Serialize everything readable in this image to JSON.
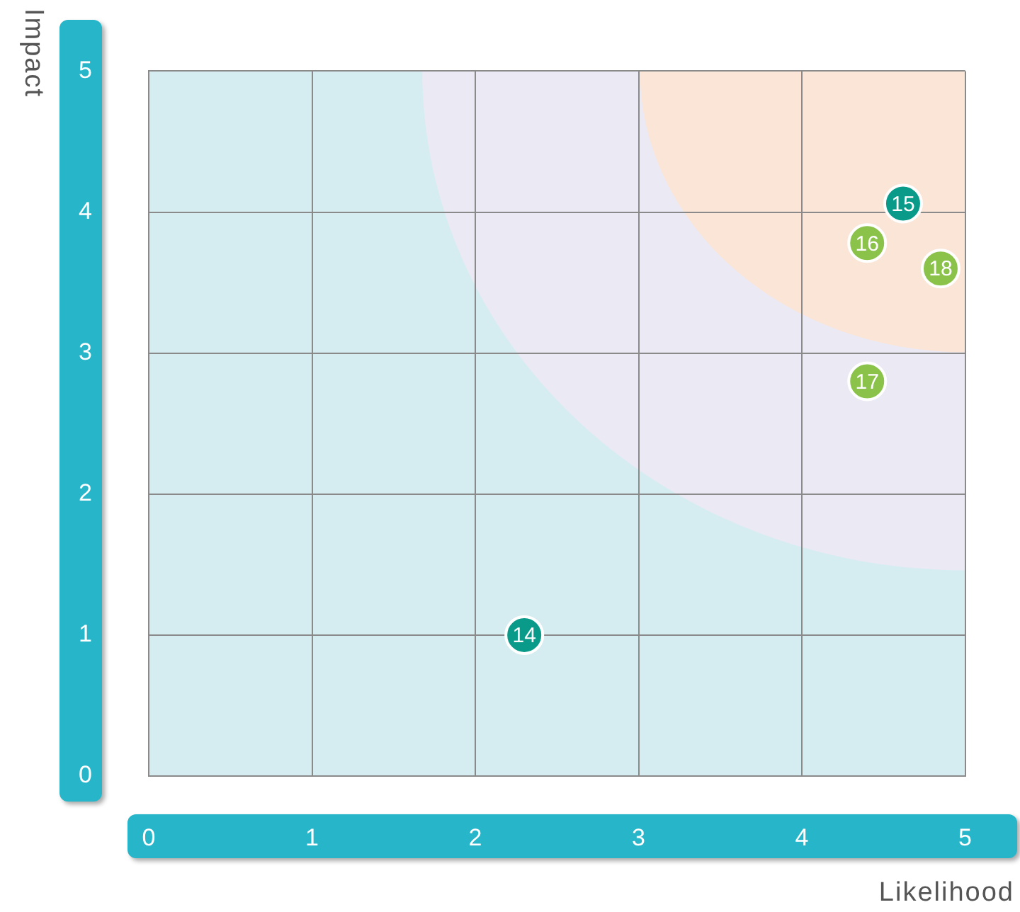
{
  "chart_data": {
    "type": "scatter",
    "xlabel": "Likelihood",
    "ylabel": "Impact",
    "x": [
      2.3,
      4.62,
      4.4,
      4.4,
      4.85
    ],
    "values": [
      1.0,
      4.06,
      3.78,
      2.8,
      3.6
    ],
    "colors": [
      "#0a9a8a",
      "#0a9a8a",
      "#8bc34a",
      "#8bc34a",
      "#8bc34a"
    ],
    "annotations": [
      {
        "text": "14",
        "x": 2.3,
        "y": 1.0
      },
      {
        "text": "15",
        "x": 4.62,
        "y": 4.06
      },
      {
        "text": "16",
        "x": 4.4,
        "y": 3.78
      },
      {
        "text": "17",
        "x": 4.4,
        "y": 2.8
      },
      {
        "text": "18",
        "x": 4.85,
        "y": 3.6
      }
    ],
    "xlim": [
      0,
      5
    ],
    "ylim": [
      0,
      5
    ],
    "xticks": [
      0,
      1,
      2,
      3,
      4,
      5
    ],
    "yticks": [
      0,
      1,
      2,
      3,
      4,
      5
    ],
    "grid": true,
    "legend": false,
    "marker": "circle"
  }
}
